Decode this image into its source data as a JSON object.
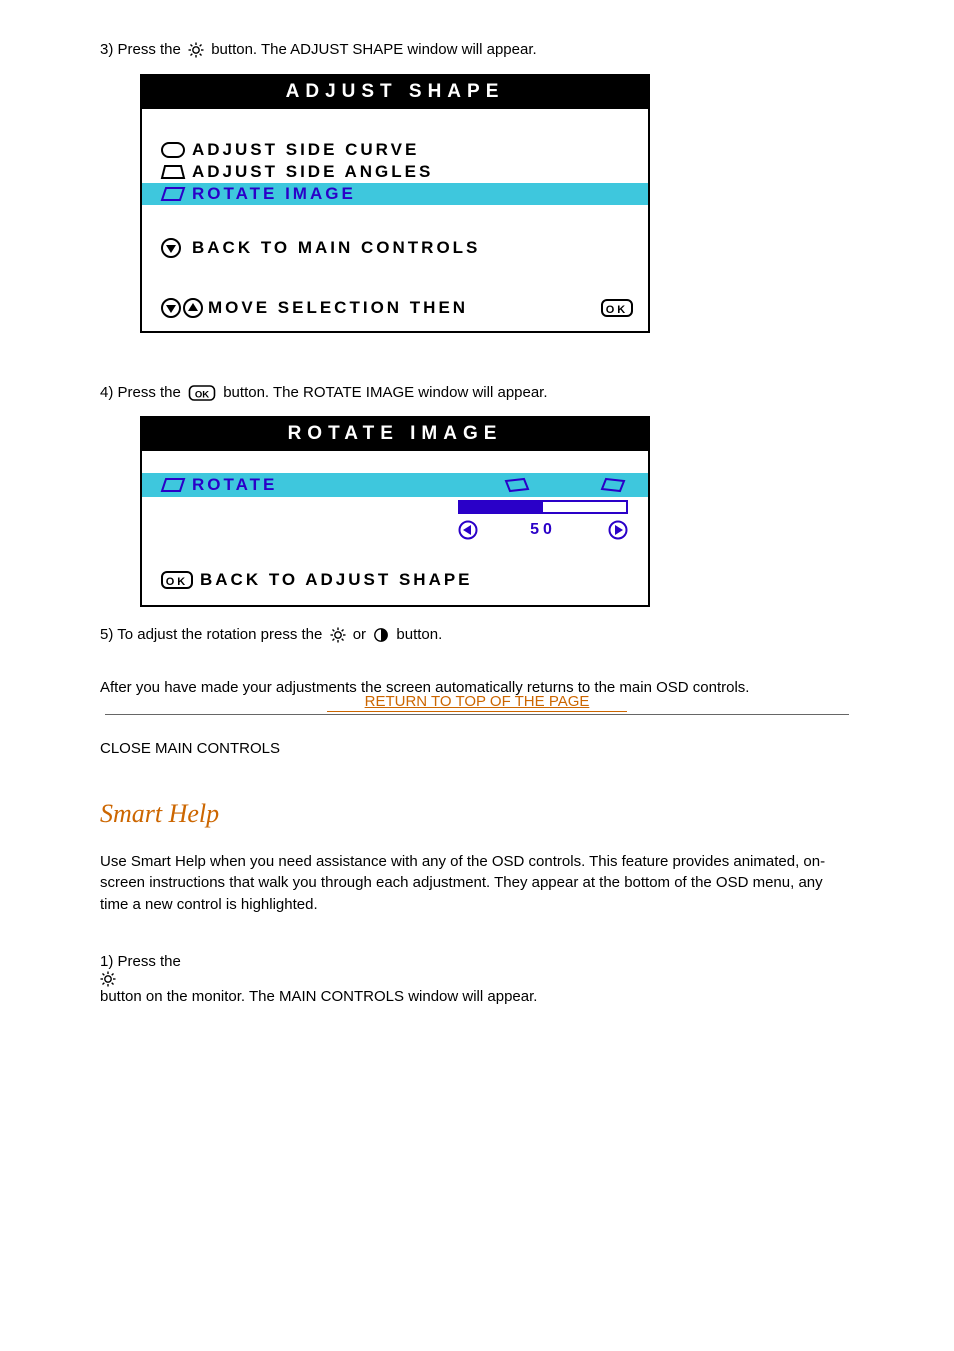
{
  "colors": {
    "black": "#000000",
    "white": "#ffffff",
    "highlight_bg": "#3ec7dd",
    "highlight_text": "#2a00c8",
    "link_orange": "#cc6600",
    "rule_gray": "#666666"
  },
  "step3": {
    "text_before": "3) Press the ",
    "text_after": " button. The ADJUST SHAPE window will appear."
  },
  "osd1": {
    "title": "ADJUST SHAPE",
    "items": [
      {
        "label": "ADJUST SIDE CURVE",
        "icon": "barrel-icon",
        "highlight": false
      },
      {
        "label": "ADJUST SIDE ANGLES",
        "icon": "trapezoid-icon",
        "highlight": false
      },
      {
        "label": "ROTATE IMAGE",
        "icon": "parallelogram-icon",
        "highlight": true
      }
    ],
    "back": {
      "label": "BACK TO MAIN CONTROLS",
      "icon": "down-in-circle-icon"
    },
    "footer": {
      "label": "MOVE SELECTION THEN",
      "left_icon": "up-down-in-circles-icon",
      "right_icon": "ok-icon"
    }
  },
  "step4": {
    "text_before": "4) Press the ",
    "text_after": " button. The ROTATE IMAGE window will appear."
  },
  "osd2": {
    "title": "ROTATE IMAGE",
    "rotate": {
      "label": "ROTATE",
      "left_shape_icon": "rotate-left-icon",
      "right_shape_icon": "rotate-right-icon",
      "value": "50",
      "progress_pct": 50,
      "min_icon": "nav-left-icon",
      "max_icon": "nav-right-icon"
    },
    "back": {
      "label": "BACK TO ADJUST SHAPE",
      "icon": "ok-icon"
    }
  },
  "step5": {
    "text_before": "5) To adjust the rotation press the ",
    "text_mid": " or ",
    "text_after": " button."
  },
  "toc_link": "RETURN TO TOP OF THE PAGE",
  "returns": "After you have made your adjustments the screen automatically returns to the main OSD controls.",
  "close_selections": "CLOSE MAIN CONTROLS",
  "section_title": "Smart Help",
  "smart_help_para": "Use Smart Help when you need assistance with any of the OSD controls. This feature provides animated, on-screen instructions that walk you through each adjustment. They appear at the bottom of the OSD menu, any time a new control is highlighted.",
  "step1_cs": {
    "text_before": "1) Press the ",
    "text_after": " button on the monitor. The MAIN CONTROLS window will appear."
  }
}
